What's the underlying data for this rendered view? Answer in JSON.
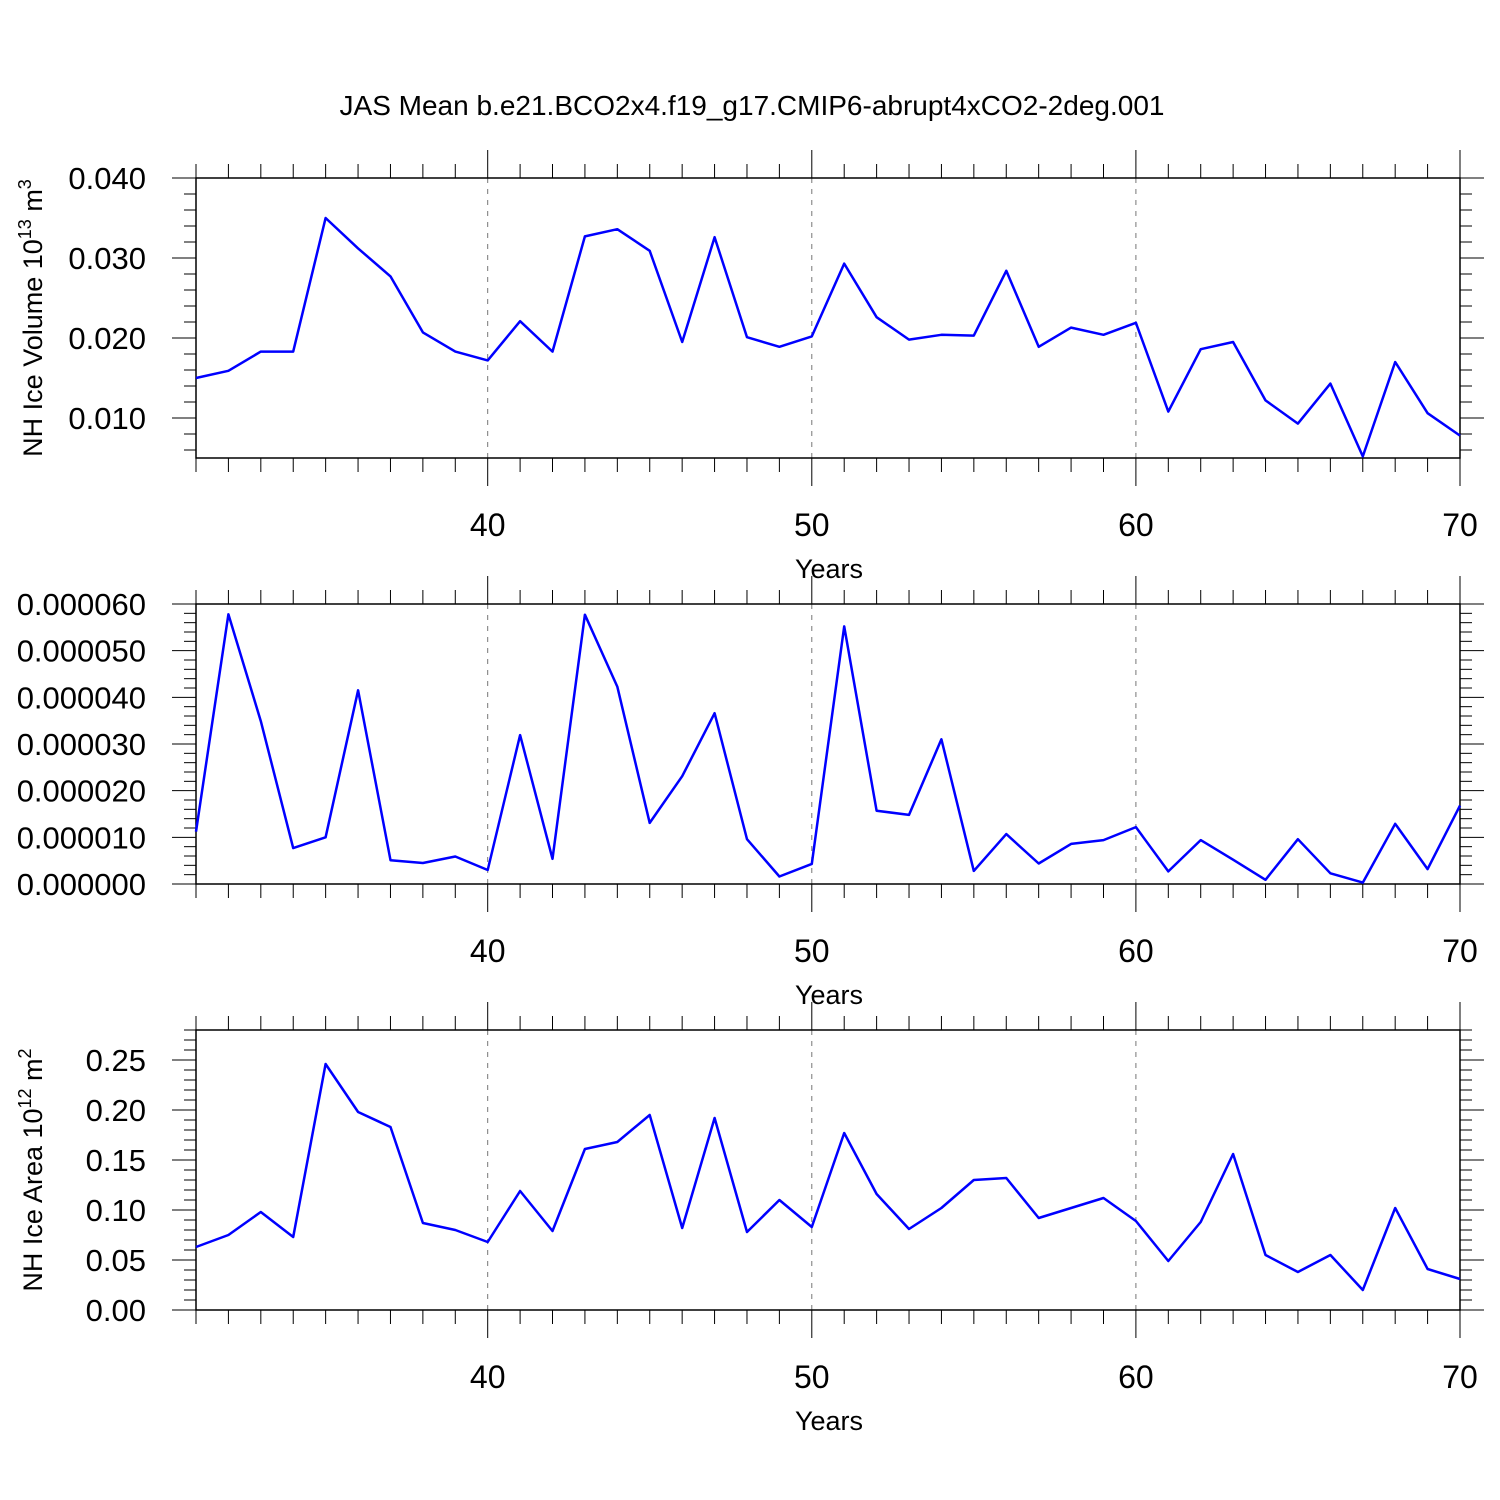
{
  "title": "JAS Mean b.e21.BCO2x4.f19_g17.CMIP6-abrupt4xCO2-2deg.001",
  "colors": {
    "line": "#0000ff",
    "axis": "#000000",
    "grid": "#777777"
  },
  "chart_data": [
    {
      "type": "line",
      "title": "",
      "xlabel": "Years",
      "ylabel": "NH Ice Volume 10",
      "ylabel_sup": "13",
      "ylabel_unit": " m",
      "ylabel_unit_sup": "3",
      "xlim": [
        31,
        70
      ],
      "ylim": [
        0.005,
        0.04
      ],
      "xticks": [
        40,
        50,
        60,
        70
      ],
      "yticks": [
        0.01,
        0.02,
        0.03,
        0.04
      ],
      "ytick_labels": [
        "0.010",
        "0.020",
        "0.030",
        "0.040"
      ],
      "grid": "vertical dashed at major x ticks",
      "x": [
        31,
        32,
        33,
        34,
        35,
        36,
        37,
        38,
        39,
        40,
        41,
        42,
        43,
        44,
        45,
        46,
        47,
        48,
        49,
        50,
        51,
        52,
        53,
        54,
        55,
        56,
        57,
        58,
        59,
        60,
        61,
        62,
        63,
        64,
        65,
        66,
        67,
        68,
        69,
        70
      ],
      "values": [
        0.015,
        0.0159,
        0.0183,
        0.0183,
        0.035,
        0.0312,
        0.0277,
        0.0207,
        0.0183,
        0.0172,
        0.0221,
        0.0183,
        0.0327,
        0.0336,
        0.0309,
        0.0195,
        0.0326,
        0.0201,
        0.0189,
        0.0202,
        0.0293,
        0.0226,
        0.0198,
        0.0204,
        0.0203,
        0.0284,
        0.0189,
        0.0213,
        0.0204,
        0.0219,
        0.0108,
        0.0186,
        0.0195,
        0.0122,
        0.0093,
        0.0143,
        0.0052,
        0.017,
        0.0106,
        0.0078
      ]
    },
    {
      "type": "line",
      "title": "",
      "xlabel": "Years",
      "ylabel": "",
      "xlim": [
        31,
        70
      ],
      "ylim": [
        0.0,
        6e-05
      ],
      "xticks": [
        40,
        50,
        60,
        70
      ],
      "yticks": [
        0.0,
        1e-05,
        2e-05,
        3e-05,
        4e-05,
        5e-05,
        6e-05
      ],
      "ytick_labels": [
        "0.000000",
        "0.000010",
        "0.000020",
        "0.000030",
        "0.000040",
        "0.000050",
        "0.000060"
      ],
      "grid": "vertical dashed at major x ticks",
      "x": [
        31,
        32,
        33,
        34,
        35,
        36,
        37,
        38,
        39,
        40,
        41,
        42,
        43,
        44,
        45,
        46,
        47,
        48,
        49,
        50,
        51,
        52,
        53,
        54,
        55,
        56,
        57,
        58,
        59,
        60,
        61,
        62,
        63,
        64,
        65,
        66,
        67,
        68,
        69,
        70
      ],
      "values": [
        1.12e-05,
        5.78e-05,
        3.49e-05,
        7.7e-06,
        1e-05,
        4.15e-05,
        5.1e-06,
        4.5e-06,
        5.9e-06,
        3e-06,
        3.19e-05,
        5.4e-06,
        5.77e-05,
        4.23e-05,
        1.31e-05,
        2.31e-05,
        3.66e-05,
        9.6e-06,
        1.6e-06,
        4.3e-06,
        5.52e-05,
        1.57e-05,
        1.48e-05,
        3.1e-05,
        2.8e-06,
        1.07e-05,
        4.4e-06,
        8.6e-06,
        9.4e-06,
        1.22e-05,
        2.7e-06,
        9.4e-06,
        5.2e-06,
        9e-07,
        9.6e-06,
        2.3e-06,
        3e-07,
        1.29e-05,
        3.2e-06,
        1.68e-05
      ]
    },
    {
      "type": "line",
      "title": "",
      "xlabel": "Years",
      "ylabel": "NH Ice Area 10",
      "ylabel_sup": "12",
      "ylabel_unit": " m",
      "ylabel_unit_sup": "2",
      "xlim": [
        31,
        70
      ],
      "ylim": [
        0.0,
        0.28
      ],
      "xticks": [
        40,
        50,
        60,
        70
      ],
      "yticks": [
        0.0,
        0.05,
        0.1,
        0.15,
        0.2,
        0.25
      ],
      "ytick_labels": [
        "0.00",
        "0.05",
        "0.10",
        "0.15",
        "0.20",
        "0.25"
      ],
      "grid": "vertical dashed at major x ticks",
      "x": [
        31,
        32,
        33,
        34,
        35,
        36,
        37,
        38,
        39,
        40,
        41,
        42,
        43,
        44,
        45,
        46,
        47,
        48,
        49,
        50,
        51,
        52,
        53,
        54,
        55,
        56,
        57,
        58,
        59,
        60,
        61,
        62,
        63,
        64,
        65,
        66,
        67,
        68,
        69,
        70
      ],
      "values": [
        0.063,
        0.075,
        0.098,
        0.073,
        0.246,
        0.198,
        0.183,
        0.087,
        0.08,
        0.068,
        0.119,
        0.079,
        0.161,
        0.168,
        0.195,
        0.082,
        0.192,
        0.078,
        0.11,
        0.083,
        0.177,
        0.116,
        0.081,
        0.102,
        0.13,
        0.132,
        0.092,
        0.102,
        0.112,
        0.089,
        0.049,
        0.088,
        0.156,
        0.055,
        0.038,
        0.055,
        0.02,
        0.102,
        0.041,
        0.031
      ]
    }
  ]
}
